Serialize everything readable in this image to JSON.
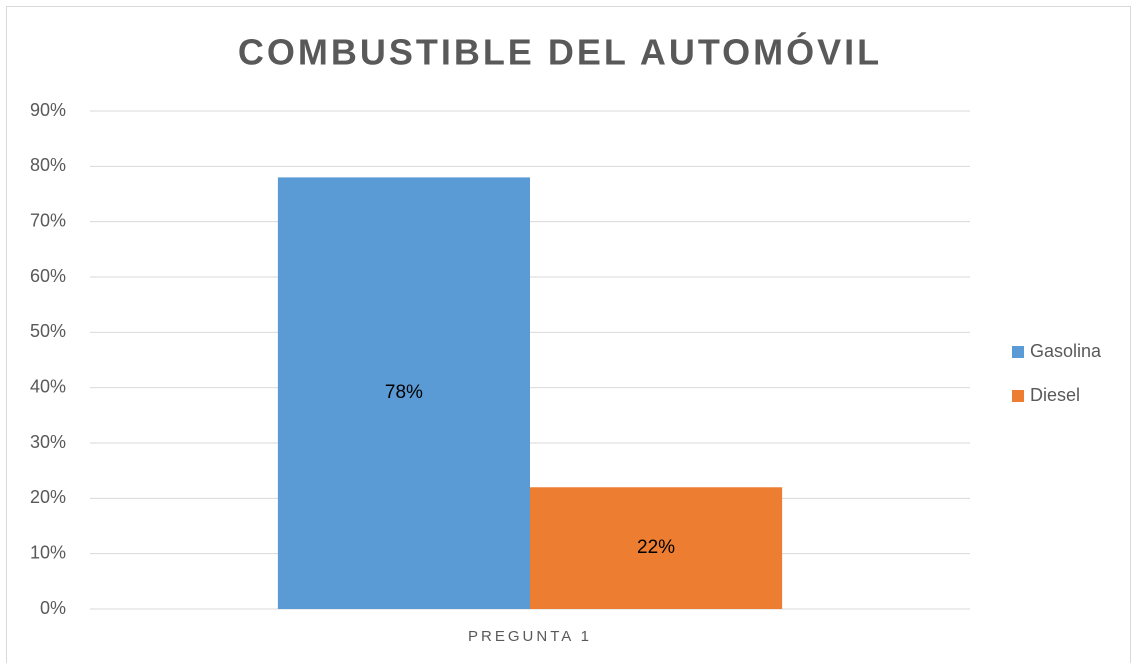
{
  "chart_data": {
    "type": "bar",
    "title": "COMBUSTIBLE DEL AUTOMÓVIL",
    "categories": [
      "PREGUNTA 1"
    ],
    "series": [
      {
        "name": "Gasolina",
        "color": "#5b9bd5",
        "values": [
          78
        ],
        "value_labels": [
          "78%"
        ]
      },
      {
        "name": "Diesel",
        "color": "#ed7d31",
        "values": [
          22
        ],
        "value_labels": [
          "22%"
        ]
      }
    ],
    "ylim": [
      0,
      90
    ],
    "yticks": [
      {
        "value": 0,
        "label": "0%"
      },
      {
        "value": 10,
        "label": "10%"
      },
      {
        "value": 20,
        "label": "20%"
      },
      {
        "value": 30,
        "label": "30%"
      },
      {
        "value": 40,
        "label": "40%"
      },
      {
        "value": 50,
        "label": "50%"
      },
      {
        "value": 60,
        "label": "60%"
      },
      {
        "value": 70,
        "label": "70%"
      },
      {
        "value": 80,
        "label": "80%"
      },
      {
        "value": 90,
        "label": "90%"
      }
    ],
    "grid": true,
    "legend": "right"
  }
}
